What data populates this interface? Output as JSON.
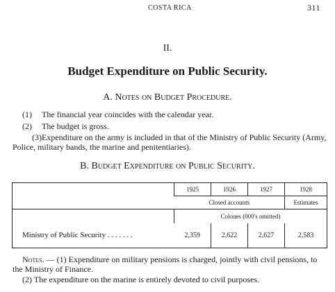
{
  "header": {
    "running_title": "COSTA RICA",
    "page_number": "311"
  },
  "section": "II.",
  "title": "Budget Expenditure on Public Security.",
  "notes_heading": "A. Notes on Budget Procedure.",
  "notes": [
    {
      "label": "(1)",
      "text": "The financial year coincides with the calendar year."
    },
    {
      "label": "(2)",
      "text": "The budget is gross."
    },
    {
      "label": "(3)",
      "text": "Expenditure on the army is included in that of the Ministry of Public Security (Army, Police, military bands, the marine and penitentiaries)."
    }
  ],
  "table_heading": "B. Budget Expenditure on Public Security.",
  "table": {
    "years": [
      "1925",
      "1926",
      "1927",
      "1928"
    ],
    "closed_accounts": "Closed accounts",
    "estimates": "Estimates",
    "unit": "Colones (000's omitted)",
    "rows": [
      [
        "Ministry of Public Security",
        "2,359",
        "2,622",
        "2,627",
        "2,583"
      ]
    ]
  },
  "footnotes": {
    "lead": "Notes. —",
    "items": [
      {
        "label": "(1)",
        "text": "Expenditure on military pensions is charged, jointly with civil pensions, to the Ministry of Finance."
      },
      {
        "label": "(2)",
        "text": "The expenditure on the marine is entirely devoted to civil purposes."
      }
    ]
  }
}
